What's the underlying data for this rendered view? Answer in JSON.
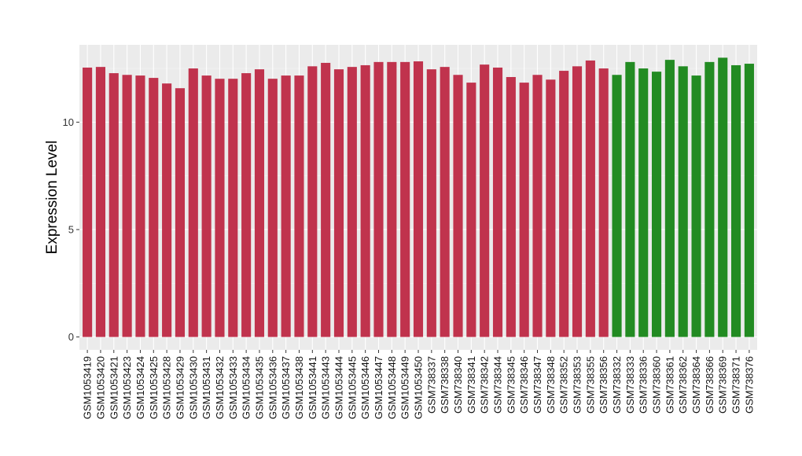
{
  "chart_data": {
    "type": "bar",
    "title": "",
    "xlabel": "",
    "ylabel": "Expression Level",
    "ylim": [
      -0.6,
      13.6
    ],
    "yticks": [
      0,
      5,
      10
    ],
    "grid": true,
    "legend": "none",
    "colors": {
      "group1": "#C0334D",
      "group2": "#228B22",
      "panel": "#EBEBEB",
      "grid": "#FFFFFF"
    },
    "categories": [
      "GSM1053419",
      "GSM1053420",
      "GSM1053421",
      "GSM1053423",
      "GSM1053424",
      "GSM1053425",
      "GSM1053428",
      "GSM1053429",
      "GSM1053430",
      "GSM1053431",
      "GSM1053432",
      "GSM1053433",
      "GSM1053434",
      "GSM1053435",
      "GSM1053436",
      "GSM1053437",
      "GSM1053438",
      "GSM1053441",
      "GSM1053443",
      "GSM1053444",
      "GSM1053445",
      "GSM1053446",
      "GSM1053447",
      "GSM1053448",
      "GSM1053449",
      "GSM1053450",
      "GSM738337",
      "GSM738338",
      "GSM738340",
      "GSM738341",
      "GSM738342",
      "GSM738344",
      "GSM738345",
      "GSM738346",
      "GSM738347",
      "GSM738348",
      "GSM738352",
      "GSM738353",
      "GSM738355",
      "GSM738356",
      "GSM738332",
      "GSM738333",
      "GSM738336",
      "GSM738360",
      "GSM738361",
      "GSM738362",
      "GSM738364",
      "GSM738366",
      "GSM738369",
      "GSM738371",
      "GSM738376"
    ],
    "values": [
      12.54,
      12.57,
      12.28,
      12.2,
      12.17,
      12.06,
      11.8,
      11.58,
      12.5,
      12.17,
      12.02,
      12.02,
      12.28,
      12.46,
      12.02,
      12.17,
      12.17,
      12.6,
      12.76,
      12.46,
      12.57,
      12.65,
      12.8,
      12.8,
      12.8,
      12.83,
      12.46,
      12.57,
      12.2,
      11.84,
      12.68,
      12.54,
      12.1,
      11.84,
      12.2,
      11.98,
      12.39,
      12.6,
      12.87,
      12.5,
      12.2,
      12.8,
      12.5,
      12.35,
      12.9,
      12.6,
      12.17,
      12.8,
      13.0,
      12.65,
      12.72
    ],
    "groups": [
      "group1",
      "group1",
      "group1",
      "group1",
      "group1",
      "group1",
      "group1",
      "group1",
      "group1",
      "group1",
      "group1",
      "group1",
      "group1",
      "group1",
      "group1",
      "group1",
      "group1",
      "group1",
      "group1",
      "group1",
      "group1",
      "group1",
      "group1",
      "group1",
      "group1",
      "group1",
      "group1",
      "group1",
      "group1",
      "group1",
      "group1",
      "group1",
      "group1",
      "group1",
      "group1",
      "group1",
      "group1",
      "group1",
      "group1",
      "group1",
      "group2",
      "group2",
      "group2",
      "group2",
      "group2",
      "group2",
      "group2",
      "group2",
      "group2",
      "group2",
      "group2"
    ]
  }
}
